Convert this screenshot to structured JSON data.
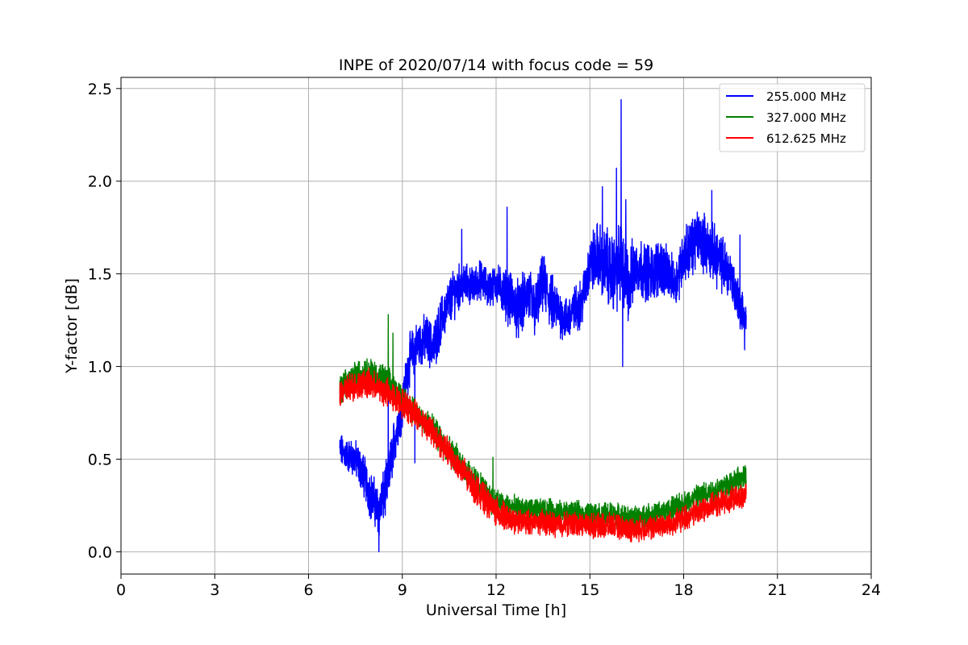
{
  "chart_data": {
    "type": "line",
    "title": "INPE of 2020/07/14 with focus code = 59",
    "xlabel": "Universal Time [h]",
    "ylabel": "Y-factor [dB]",
    "xlim": [
      0,
      24
    ],
    "ylim": [
      -0.12,
      2.56
    ],
    "xticks": [
      0,
      3,
      6,
      9,
      12,
      15,
      18,
      21,
      24
    ],
    "xtick_labels": [
      "0",
      "3",
      "6",
      "9",
      "12",
      "15",
      "18",
      "21",
      "24"
    ],
    "yticks": [
      0.0,
      0.5,
      1.0,
      1.5,
      2.0,
      2.5
    ],
    "ytick_labels": [
      "0.0",
      "0.5",
      "1.0",
      "1.5",
      "2.0",
      "2.5"
    ],
    "grid": true,
    "legend_position": "top-right",
    "series": [
      {
        "name": "255.000 MHz",
        "color": "#0000ff",
        "x": [
          7.0,
          7.25,
          7.5,
          7.75,
          8.0,
          8.25,
          8.5,
          8.75,
          9.0,
          9.25,
          9.5,
          9.75,
          10.0,
          10.25,
          10.5,
          10.75,
          11.0,
          11.25,
          11.5,
          11.75,
          12.0,
          12.25,
          12.5,
          12.75,
          13.0,
          13.25,
          13.5,
          13.75,
          14.0,
          14.25,
          14.5,
          14.75,
          15.0,
          15.25,
          15.5,
          15.75,
          16.0,
          16.25,
          16.5,
          16.75,
          17.0,
          17.25,
          17.5,
          17.75,
          18.0,
          18.25,
          18.5,
          18.75,
          19.0,
          19.25,
          19.5,
          19.75,
          20.0
        ],
        "y": [
          0.55,
          0.52,
          0.5,
          0.42,
          0.3,
          0.22,
          0.35,
          0.6,
          0.8,
          1.05,
          1.12,
          1.15,
          1.1,
          1.25,
          1.35,
          1.42,
          1.45,
          1.43,
          1.47,
          1.42,
          1.45,
          1.4,
          1.35,
          1.3,
          1.4,
          1.3,
          1.45,
          1.35,
          1.3,
          1.25,
          1.3,
          1.35,
          1.55,
          1.6,
          1.55,
          1.5,
          1.55,
          1.45,
          1.55,
          1.52,
          1.5,
          1.55,
          1.5,
          1.45,
          1.6,
          1.65,
          1.7,
          1.65,
          1.6,
          1.55,
          1.5,
          1.35,
          1.25
        ],
        "spread": [
          0.07,
          0.07,
          0.08,
          0.09,
          0.1,
          0.11,
          0.11,
          0.1,
          0.1,
          0.1,
          0.1,
          0.1,
          0.1,
          0.1,
          0.1,
          0.1,
          0.08,
          0.08,
          0.08,
          0.08,
          0.08,
          0.1,
          0.12,
          0.12,
          0.12,
          0.12,
          0.12,
          0.12,
          0.1,
          0.1,
          0.1,
          0.1,
          0.12,
          0.14,
          0.16,
          0.16,
          0.18,
          0.16,
          0.12,
          0.12,
          0.12,
          0.12,
          0.1,
          0.1,
          0.12,
          0.12,
          0.12,
          0.12,
          0.12,
          0.12,
          0.1,
          0.1,
          0.08
        ],
        "spikes": [
          [
            8.25,
            0.0
          ],
          [
            8.55,
            1.02
          ],
          [
            9.4,
            0.48
          ],
          [
            10.9,
            1.74
          ],
          [
            12.35,
            1.86
          ],
          [
            15.4,
            1.97
          ],
          [
            15.85,
            2.07
          ],
          [
            16.0,
            2.44
          ],
          [
            16.05,
            1.0
          ],
          [
            16.15,
            1.9
          ],
          [
            18.9,
            1.95
          ],
          [
            19.8,
            1.71
          ],
          [
            19.95,
            1.09
          ]
        ]
      },
      {
        "name": "327.000 MHz",
        "color": "#008000",
        "x": [
          7.0,
          7.25,
          7.5,
          7.75,
          8.0,
          8.25,
          8.5,
          8.75,
          9.0,
          9.25,
          9.5,
          9.75,
          10.0,
          10.25,
          10.5,
          10.75,
          11.0,
          11.25,
          11.5,
          11.75,
          12.0,
          12.25,
          12.5,
          12.75,
          13.0,
          13.25,
          13.5,
          13.75,
          14.0,
          14.25,
          14.5,
          14.75,
          15.0,
          15.25,
          15.5,
          15.75,
          16.0,
          16.25,
          16.5,
          16.75,
          17.0,
          17.25,
          17.5,
          17.75,
          18.0,
          18.25,
          18.5,
          18.75,
          19.0,
          19.25,
          19.5,
          19.75,
          20.0
        ],
        "y": [
          0.87,
          0.92,
          0.95,
          0.97,
          0.97,
          0.94,
          0.92,
          0.88,
          0.82,
          0.78,
          0.74,
          0.7,
          0.66,
          0.6,
          0.55,
          0.5,
          0.45,
          0.4,
          0.35,
          0.3,
          0.27,
          0.25,
          0.24,
          0.23,
          0.22,
          0.22,
          0.22,
          0.22,
          0.21,
          0.21,
          0.21,
          0.2,
          0.2,
          0.2,
          0.2,
          0.2,
          0.19,
          0.18,
          0.18,
          0.19,
          0.2,
          0.21,
          0.22,
          0.24,
          0.26,
          0.28,
          0.3,
          0.32,
          0.33,
          0.35,
          0.37,
          0.39,
          0.4
        ],
        "spread": [
          0.06,
          0.06,
          0.06,
          0.06,
          0.06,
          0.06,
          0.06,
          0.06,
          0.06,
          0.06,
          0.06,
          0.06,
          0.06,
          0.06,
          0.06,
          0.06,
          0.06,
          0.06,
          0.06,
          0.06,
          0.06,
          0.05,
          0.05,
          0.05,
          0.05,
          0.05,
          0.05,
          0.05,
          0.05,
          0.05,
          0.05,
          0.05,
          0.05,
          0.05,
          0.05,
          0.05,
          0.05,
          0.05,
          0.05,
          0.05,
          0.05,
          0.05,
          0.05,
          0.05,
          0.05,
          0.05,
          0.05,
          0.05,
          0.05,
          0.05,
          0.05,
          0.05,
          0.05
        ],
        "spikes": [
          [
            8.55,
            1.28
          ],
          [
            8.7,
            1.18
          ],
          [
            11.9,
            0.51
          ]
        ]
      },
      {
        "name": "612.625 MHz",
        "color": "#ff0000",
        "x": [
          7.0,
          7.25,
          7.5,
          7.75,
          8.0,
          8.25,
          8.5,
          8.75,
          9.0,
          9.25,
          9.5,
          9.75,
          10.0,
          10.25,
          10.5,
          10.75,
          11.0,
          11.25,
          11.5,
          11.75,
          12.0,
          12.25,
          12.5,
          12.75,
          13.0,
          13.25,
          13.5,
          13.75,
          14.0,
          14.25,
          14.5,
          14.75,
          15.0,
          15.25,
          15.5,
          15.75,
          16.0,
          16.25,
          16.5,
          16.75,
          17.0,
          17.25,
          17.5,
          17.75,
          18.0,
          18.25,
          18.5,
          18.75,
          19.0,
          19.25,
          19.5,
          19.75,
          20.0
        ],
        "y": [
          0.85,
          0.88,
          0.9,
          0.91,
          0.9,
          0.88,
          0.86,
          0.83,
          0.8,
          0.77,
          0.73,
          0.69,
          0.64,
          0.58,
          0.53,
          0.47,
          0.42,
          0.36,
          0.31,
          0.26,
          0.22,
          0.19,
          0.17,
          0.16,
          0.16,
          0.16,
          0.16,
          0.15,
          0.15,
          0.15,
          0.15,
          0.15,
          0.14,
          0.14,
          0.14,
          0.14,
          0.13,
          0.12,
          0.12,
          0.13,
          0.13,
          0.14,
          0.15,
          0.16,
          0.18,
          0.2,
          0.22,
          0.24,
          0.25,
          0.27,
          0.28,
          0.29,
          0.3
        ],
        "spread": [
          0.06,
          0.06,
          0.06,
          0.06,
          0.06,
          0.06,
          0.06,
          0.06,
          0.06,
          0.06,
          0.06,
          0.06,
          0.06,
          0.06,
          0.06,
          0.06,
          0.06,
          0.06,
          0.06,
          0.06,
          0.06,
          0.06,
          0.05,
          0.05,
          0.05,
          0.05,
          0.05,
          0.05,
          0.05,
          0.05,
          0.05,
          0.05,
          0.05,
          0.05,
          0.05,
          0.05,
          0.05,
          0.05,
          0.05,
          0.05,
          0.05,
          0.05,
          0.05,
          0.05,
          0.05,
          0.05,
          0.05,
          0.05,
          0.05,
          0.05,
          0.05,
          0.05,
          0.05
        ],
        "spikes": []
      }
    ]
  }
}
